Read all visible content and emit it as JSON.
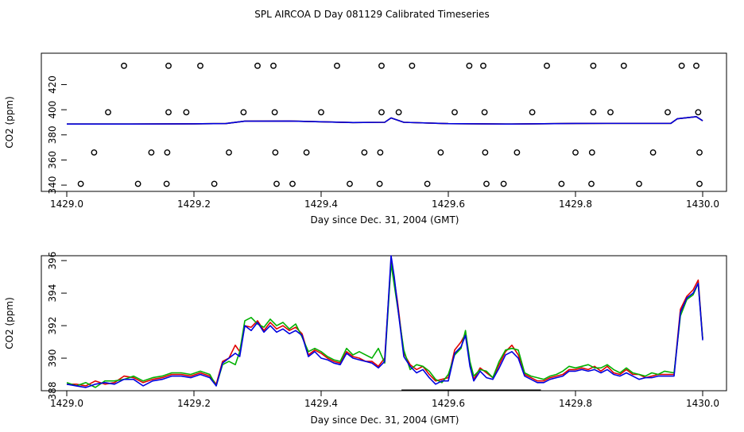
{
  "page_title": "SPL AIRCOA D  Day 081129  Calibrated Timeseries",
  "chart_data": [
    {
      "type": "scatter+line",
      "xlabel": "Day since Dec. 31, 2004 (GMT)",
      "ylabel": "CO2 (ppm)",
      "xlim": [
        1429.0,
        1430.0
      ],
      "ylim": [
        335,
        445
      ],
      "x_ticks": [
        1429.0,
        1429.2,
        1429.4,
        1429.6,
        1429.8,
        1430.0
      ],
      "x_tick_labels": [
        "1429.0",
        "1429.2",
        "1429.4",
        "1429.6",
        "1429.8",
        "1430.0"
      ],
      "y_ticks": [
        340,
        360,
        380,
        400,
        420
      ],
      "y_tick_labels": [
        "340",
        "360",
        "380",
        "400",
        "420"
      ],
      "calibration_points": {
        "x": [
          1429.09,
          1429.16,
          1429.21,
          1429.3,
          1429.325,
          1429.425,
          1429.495,
          1429.543,
          1429.633,
          1429.655,
          1429.755,
          1429.828,
          1429.876,
          1429.967,
          1429.99,
          1429.065,
          1429.16,
          1429.188,
          1429.278,
          1429.327,
          1429.4,
          1429.495,
          1429.522,
          1429.61,
          1429.657,
          1429.732,
          1429.828,
          1429.855,
          1429.945,
          1429.993,
          1429.043,
          1429.133,
          1429.158,
          1429.255,
          1429.328,
          1429.377,
          1429.468,
          1429.493,
          1429.588,
          1429.658,
          1429.708,
          1429.8,
          1429.826,
          1429.922,
          1429.995,
          1429.022,
          1429.112,
          1429.157,
          1429.232,
          1429.33,
          1429.355,
          1429.445,
          1429.492,
          1429.567,
          1429.66,
          1429.687,
          1429.778,
          1429.825,
          1429.9,
          1429.995
        ],
        "y": [
          435,
          435,
          435,
          435,
          435,
          435,
          435,
          435,
          435,
          435,
          435,
          435,
          435,
          435,
          435,
          398,
          398,
          398,
          398,
          398,
          398,
          398,
          398,
          398,
          398,
          398,
          398,
          398,
          398,
          398,
          366,
          366,
          366,
          366,
          366,
          366,
          366,
          366,
          366,
          366,
          366,
          366,
          366,
          366,
          366,
          341,
          341,
          341,
          341,
          341,
          341,
          341,
          341,
          341,
          341,
          341,
          341,
          341,
          341,
          341
        ]
      },
      "series": [
        {
          "name": "green",
          "color": "#00b000",
          "x": [
            1429.0,
            1429.1,
            1429.2,
            1429.25,
            1429.28,
            1429.35,
            1429.45,
            1429.5,
            1429.51,
            1429.53,
            1429.6,
            1429.7,
            1429.8,
            1429.95,
            1429.96,
            1429.99,
            1430.0
          ],
          "y": [
            388.6,
            388.6,
            388.8,
            389.0,
            390.9,
            391.0,
            389.8,
            390.0,
            393.5,
            390.0,
            388.9,
            388.6,
            389.1,
            389.2,
            392.8,
            394.5,
            391.2
          ]
        },
        {
          "name": "red",
          "color": "#e00000",
          "x": [
            1429.0,
            1429.1,
            1429.2,
            1429.25,
            1429.28,
            1429.35,
            1429.45,
            1429.5,
            1429.51,
            1429.53,
            1429.6,
            1429.7,
            1429.8,
            1429.95,
            1429.96,
            1429.99,
            1430.0
          ],
          "y": [
            388.6,
            388.6,
            388.8,
            389.0,
            390.9,
            391.0,
            389.8,
            390.0,
            393.5,
            390.0,
            388.9,
            388.6,
            389.1,
            389.2,
            392.8,
            394.5,
            391.2
          ]
        },
        {
          "name": "blue",
          "color": "#0000e0",
          "x": [
            1429.0,
            1429.1,
            1429.2,
            1429.25,
            1429.28,
            1429.35,
            1429.45,
            1429.5,
            1429.51,
            1429.53,
            1429.6,
            1429.7,
            1429.8,
            1429.95,
            1429.96,
            1429.99,
            1430.0
          ],
          "y": [
            388.6,
            388.6,
            388.8,
            389.0,
            390.9,
            391.0,
            389.8,
            390.0,
            393.5,
            390.0,
            388.9,
            388.6,
            389.1,
            389.2,
            392.8,
            394.5,
            391.2
          ]
        }
      ]
    },
    {
      "type": "line",
      "xlabel": "Day since Dec. 31, 2004 (GMT)",
      "ylabel": "CO2 (ppm)",
      "xlim": [
        1429.0,
        1430.0
      ],
      "ylim": [
        388,
        396.3
      ],
      "x_ticks": [
        1429.0,
        1429.2,
        1429.4,
        1429.6,
        1429.8,
        1430.0
      ],
      "x_tick_labels": [
        "1429.0",
        "1429.2",
        "1429.4",
        "1429.6",
        "1429.8",
        "1430.0"
      ],
      "y_ticks": [
        388,
        390,
        392,
        394,
        396
      ],
      "y_tick_labels": [
        "388",
        "390",
        "392",
        "394",
        "396"
      ],
      "annotation_range": {
        "x": [
          1429.527,
          1429.745
        ],
        "y": 388.05
      },
      "series": [
        {
          "name": "red",
          "color": "#e00000",
          "x": [
            1429.0,
            1429.015,
            1429.03,
            1429.045,
            1429.06,
            1429.075,
            1429.09,
            1429.105,
            1429.12,
            1429.135,
            1429.15,
            1429.165,
            1429.18,
            1429.195,
            1429.21,
            1429.225,
            1429.235,
            1429.245,
            1429.255,
            1429.265,
            1429.272,
            1429.28,
            1429.29,
            1429.3,
            1429.31,
            1429.32,
            1429.33,
            1429.34,
            1429.35,
            1429.36,
            1429.37,
            1429.38,
            1429.39,
            1429.4,
            1429.41,
            1429.42,
            1429.43,
            1429.44,
            1429.45,
            1429.46,
            1429.47,
            1429.48,
            1429.49,
            1429.5,
            1429.51,
            1429.515,
            1429.52,
            1429.53,
            1429.54,
            1429.55,
            1429.56,
            1429.57,
            1429.58,
            1429.59,
            1429.6,
            1429.61,
            1429.62,
            1429.627,
            1429.634,
            1429.64,
            1429.65,
            1429.66,
            1429.67,
            1429.68,
            1429.69,
            1429.7,
            1429.71,
            1429.72,
            1429.73,
            1429.74,
            1429.75,
            1429.76,
            1429.77,
            1429.78,
            1429.79,
            1429.8,
            1429.81,
            1429.82,
            1429.83,
            1429.84,
            1429.85,
            1429.86,
            1429.87,
            1429.88,
            1429.89,
            1429.9,
            1429.91,
            1429.92,
            1429.93,
            1429.94,
            1429.955,
            1429.965,
            1429.975,
            1429.985,
            1429.993,
            1430.0
          ],
          "y": [
            388.4,
            388.4,
            388.3,
            388.6,
            388.4,
            388.5,
            388.9,
            388.8,
            388.5,
            388.7,
            388.8,
            389.0,
            389.0,
            388.9,
            389.1,
            388.9,
            388.4,
            389.8,
            390.0,
            390.8,
            390.4,
            392.0,
            391.9,
            392.3,
            391.7,
            392.2,
            391.8,
            392.0,
            391.7,
            391.9,
            391.5,
            390.2,
            390.5,
            390.3,
            390.0,
            389.8,
            389.7,
            390.4,
            390.1,
            390.0,
            389.8,
            389.8,
            389.5,
            390.0,
            396.0,
            394.8,
            393.5,
            390.3,
            389.6,
            389.3,
            389.5,
            389.0,
            388.6,
            388.7,
            388.8,
            390.5,
            391.0,
            391.5,
            389.7,
            388.7,
            389.4,
            389.1,
            388.8,
            389.6,
            390.4,
            390.8,
            390.2,
            389.0,
            388.8,
            388.6,
            388.6,
            388.8,
            388.9,
            389.0,
            389.3,
            389.3,
            389.4,
            389.3,
            389.5,
            389.2,
            389.5,
            389.1,
            389.0,
            389.3,
            389.0,
            389.0,
            388.8,
            388.9,
            389.0,
            389.0,
            389.0,
            393.0,
            393.8,
            394.2,
            394.8,
            391.2
          ]
        },
        {
          "name": "green",
          "color": "#00b000",
          "x": [
            1429.0,
            1429.015,
            1429.03,
            1429.045,
            1429.06,
            1429.075,
            1429.09,
            1429.105,
            1429.12,
            1429.135,
            1429.15,
            1429.165,
            1429.18,
            1429.195,
            1429.21,
            1429.225,
            1429.235,
            1429.245,
            1429.255,
            1429.265,
            1429.272,
            1429.28,
            1429.29,
            1429.3,
            1429.31,
            1429.32,
            1429.33,
            1429.34,
            1429.35,
            1429.36,
            1429.37,
            1429.38,
            1429.39,
            1429.4,
            1429.41,
            1429.42,
            1429.43,
            1429.44,
            1429.45,
            1429.46,
            1429.47,
            1429.48,
            1429.49,
            1429.5,
            1429.51,
            1429.515,
            1429.52,
            1429.53,
            1429.54,
            1429.55,
            1429.56,
            1429.57,
            1429.58,
            1429.59,
            1429.6,
            1429.61,
            1429.62,
            1429.627,
            1429.634,
            1429.64,
            1429.65,
            1429.66,
            1429.67,
            1429.68,
            1429.69,
            1429.7,
            1429.71,
            1429.72,
            1429.73,
            1429.74,
            1429.75,
            1429.76,
            1429.77,
            1429.78,
            1429.79,
            1429.8,
            1429.81,
            1429.82,
            1429.83,
            1429.84,
            1429.85,
            1429.86,
            1429.87,
            1429.88,
            1429.89,
            1429.9,
            1429.91,
            1429.92,
            1429.93,
            1429.94,
            1429.955,
            1429.965,
            1429.975,
            1429.985,
            1429.993,
            1430.0
          ],
          "y": [
            388.5,
            388.3,
            388.5,
            388.2,
            388.6,
            388.6,
            388.7,
            388.9,
            388.6,
            388.8,
            388.9,
            389.1,
            389.1,
            389.0,
            389.2,
            389.0,
            388.3,
            389.6,
            389.8,
            389.6,
            390.4,
            392.3,
            392.5,
            392.1,
            391.9,
            392.4,
            392.0,
            392.2,
            391.8,
            392.1,
            391.3,
            390.4,
            390.6,
            390.4,
            390.1,
            389.9,
            389.8,
            390.6,
            390.2,
            390.4,
            390.2,
            390.0,
            390.6,
            389.7,
            395.8,
            394.5,
            393.2,
            390.5,
            389.3,
            389.6,
            389.5,
            389.2,
            388.7,
            388.5,
            389.0,
            390.2,
            390.6,
            391.7,
            389.8,
            388.9,
            389.3,
            389.2,
            388.8,
            389.8,
            390.5,
            390.6,
            390.5,
            389.1,
            388.9,
            388.8,
            388.7,
            388.9,
            389.0,
            389.2,
            389.5,
            389.4,
            389.5,
            389.6,
            389.4,
            389.4,
            389.6,
            389.3,
            389.1,
            389.4,
            389.1,
            389.0,
            388.9,
            389.1,
            389.0,
            389.2,
            389.1,
            392.6,
            393.6,
            393.9,
            394.6,
            391.2
          ]
        },
        {
          "name": "blue",
          "color": "#0000e0",
          "x": [
            1429.0,
            1429.015,
            1429.03,
            1429.045,
            1429.06,
            1429.075,
            1429.09,
            1429.105,
            1429.12,
            1429.135,
            1429.15,
            1429.165,
            1429.18,
            1429.195,
            1429.21,
            1429.225,
            1429.235,
            1429.245,
            1429.255,
            1429.265,
            1429.272,
            1429.28,
            1429.29,
            1429.3,
            1429.31,
            1429.32,
            1429.33,
            1429.34,
            1429.35,
            1429.36,
            1429.37,
            1429.38,
            1429.39,
            1429.4,
            1429.41,
            1429.42,
            1429.43,
            1429.44,
            1429.45,
            1429.46,
            1429.47,
            1429.48,
            1429.49,
            1429.5,
            1429.51,
            1429.515,
            1429.52,
            1429.53,
            1429.54,
            1429.55,
            1429.56,
            1429.57,
            1429.58,
            1429.59,
            1429.6,
            1429.61,
            1429.62,
            1429.627,
            1429.634,
            1429.64,
            1429.65,
            1429.66,
            1429.67,
            1429.68,
            1429.69,
            1429.7,
            1429.71,
            1429.72,
            1429.73,
            1429.74,
            1429.75,
            1429.76,
            1429.77,
            1429.78,
            1429.79,
            1429.8,
            1429.81,
            1429.82,
            1429.83,
            1429.84,
            1429.85,
            1429.86,
            1429.87,
            1429.88,
            1429.89,
            1429.9,
            1429.91,
            1429.92,
            1429.93,
            1429.94,
            1429.955,
            1429.965,
            1429.975,
            1429.985,
            1429.993,
            1430.0
          ],
          "y": [
            388.4,
            388.3,
            388.2,
            388.4,
            388.5,
            388.4,
            388.7,
            388.7,
            388.3,
            388.6,
            388.7,
            388.9,
            388.9,
            388.8,
            389.0,
            388.8,
            388.3,
            389.7,
            390.0,
            390.3,
            390.1,
            392.0,
            391.7,
            392.2,
            391.6,
            392.0,
            391.6,
            391.8,
            391.5,
            391.7,
            391.4,
            390.1,
            390.4,
            390.0,
            389.9,
            389.7,
            389.6,
            390.3,
            390.0,
            389.9,
            389.8,
            389.7,
            389.4,
            389.8,
            396.3,
            395.0,
            393.3,
            390.1,
            389.5,
            389.1,
            389.3,
            388.8,
            388.4,
            388.6,
            388.6,
            390.3,
            390.7,
            391.4,
            389.5,
            388.6,
            389.2,
            388.8,
            388.7,
            389.4,
            390.2,
            390.4,
            390.0,
            388.9,
            388.7,
            388.5,
            388.5,
            388.7,
            388.8,
            388.9,
            389.2,
            389.2,
            389.3,
            389.2,
            389.3,
            389.1,
            389.3,
            389.0,
            388.9,
            389.1,
            388.9,
            388.7,
            388.8,
            388.8,
            388.9,
            388.9,
            388.9,
            392.8,
            393.7,
            394.0,
            394.6,
            391.1
          ]
        }
      ]
    }
  ]
}
